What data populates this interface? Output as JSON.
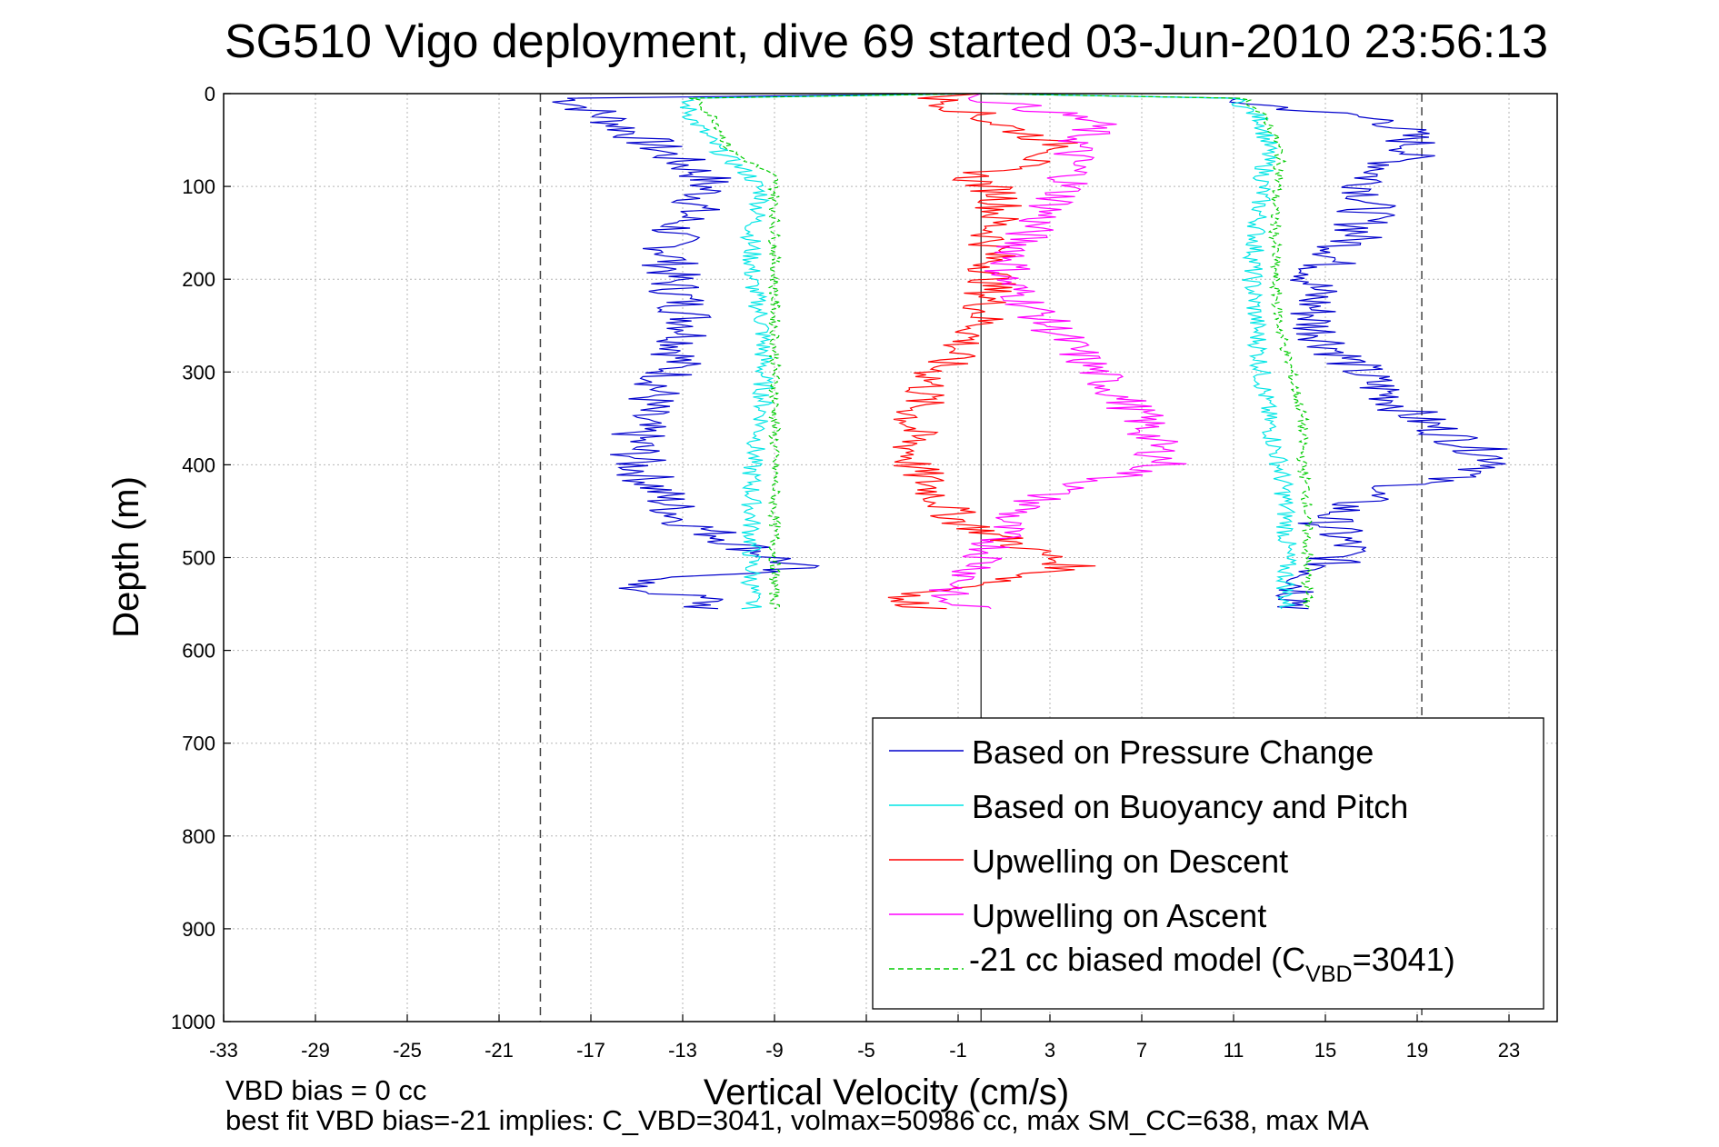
{
  "chart_data": {
    "type": "line",
    "title": "SG510 Vigo deployment, dive 69 started 03-Jun-2010 23:56:13",
    "xlabel": "Vertical Velocity (cm/s)",
    "ylabel": "Depth (m)",
    "xlim": [
      -33,
      26
    ],
    "ylim": [
      0,
      1000
    ],
    "y_reversed": true,
    "grid": true,
    "legend_position": "lower-right",
    "xticks": [
      "-33",
      "-29",
      "-25",
      "-21",
      "-17",
      "-13",
      "-9",
      "-5",
      "-1",
      "3",
      "7",
      "11",
      "15",
      "19",
      "23"
    ],
    "yticks": [
      "0",
      "100",
      "200",
      "300",
      "400",
      "500",
      "600",
      "700",
      "800",
      "900",
      "1000"
    ],
    "reference_lines": [
      {
        "x": -19.2,
        "style": "dashed"
      },
      {
        "x": 0.0,
        "style": "solid"
      },
      {
        "x": 19.2,
        "style": "dashed"
      }
    ],
    "depth": [
      5,
      30,
      60,
      90,
      110,
      150,
      200,
      250,
      300,
      350,
      400,
      430,
      460,
      490,
      510,
      530,
      545,
      555
    ],
    "series": [
      {
        "name": "Based on Pressure Change",
        "color": "#0000cc",
        "descent": [
          -18,
          -16,
          -14,
          -12,
          -12,
          -13.5,
          -13.5,
          -12.5,
          -13.5,
          -15,
          -15,
          -14,
          -13,
          -10,
          -8,
          -16,
          -12,
          -12
        ],
        "ascent": [
          10,
          18,
          19,
          17,
          17,
          16.5,
          14.5,
          14.5,
          16.5,
          19,
          23,
          17,
          15,
          16,
          15,
          14,
          14,
          14
        ]
      },
      {
        "name": "Based on Buoyancy and Pitch",
        "color": "#00e5e5",
        "descent": [
          -13,
          -12.5,
          -11.5,
          -10,
          -9.5,
          -10,
          -10,
          -9.5,
          -9.5,
          -9.5,
          -10,
          -10,
          -10,
          -10,
          -10,
          -10,
          -10,
          -10
        ],
        "ascent": [
          11,
          12.3,
          12.5,
          12.3,
          12.2,
          12,
          11.8,
          12,
          12.2,
          12.5,
          13,
          13.2,
          13.3,
          13.3,
          13.3,
          13.3,
          13.3,
          13.3
        ]
      },
      {
        "name": "Upwelling on Descent",
        "color": "#ff0000",
        "descent": [
          -2,
          0.5,
          4,
          -0.5,
          1,
          0.5,
          0.5,
          0,
          -2,
          -3,
          -3,
          -2,
          -1,
          2,
          4,
          0,
          -4,
          -2
        ]
      },
      {
        "name": "Upwelling on Ascent",
        "color": "#ff00ff",
        "ascent": [
          0,
          5,
          4,
          4,
          3.5,
          2,
          1,
          3,
          5,
          7,
          8,
          3,
          1,
          0.5,
          0,
          -1,
          -2,
          0
        ]
      },
      {
        "name": "-21 cc biased model (C",
        "color": "#00cc00",
        "legend_subscript": "VBD",
        "legend_suffix": "=3041)",
        "descent": [
          -12.5,
          -11.5,
          -11,
          -9,
          -9,
          -9,
          -9,
          -9,
          -9,
          -9,
          -9,
          -9,
          -9,
          -9,
          -9,
          -9,
          -9,
          -9
        ],
        "ascent": [
          11.5,
          12.5,
          13,
          13,
          12.8,
          12.8,
          12.8,
          13,
          13.5,
          14,
          14,
          14.2,
          14.2,
          14.2,
          14.2,
          14.2,
          14.2,
          14.2
        ]
      }
    ],
    "footer_lines": [
      "VBD bias = 0 cc",
      "best fit VBD bias=-21 implies: C_VBD=3041, volmax=50986 cc, max SM_CC=638, max MA"
    ]
  }
}
